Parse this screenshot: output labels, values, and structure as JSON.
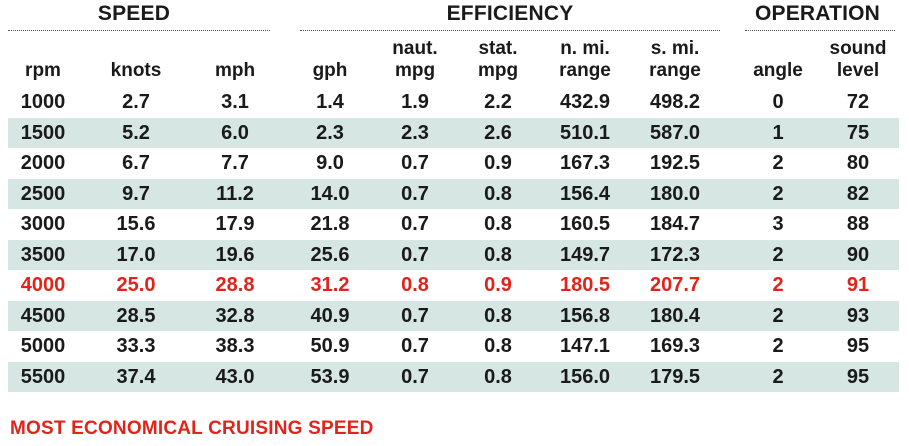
{
  "groups": {
    "speed": "SPEED",
    "efficiency": "EFFICIENCY",
    "operation": "OPERATION"
  },
  "columns": {
    "rpm": [
      "",
      "rpm"
    ],
    "knots": [
      "",
      "knots"
    ],
    "mph": [
      "",
      "mph"
    ],
    "gph": [
      "",
      "gph"
    ],
    "naut_mpg": [
      "naut.",
      "mpg"
    ],
    "stat_mpg": [
      "stat.",
      "mpg"
    ],
    "n_mi_range": [
      "n. mi.",
      "range"
    ],
    "s_mi_range": [
      "s. mi.",
      "range"
    ],
    "angle": [
      "",
      "angle"
    ],
    "sound_level": [
      "sound",
      "level"
    ]
  },
  "rows": [
    [
      "1000",
      "2.7",
      "3.1",
      "1.4",
      "1.9",
      "2.2",
      "432.9",
      "498.2",
      "0",
      "72"
    ],
    [
      "1500",
      "5.2",
      "6.0",
      "2.3",
      "2.3",
      "2.6",
      "510.1",
      "587.0",
      "1",
      "75"
    ],
    [
      "2000",
      "6.7",
      "7.7",
      "9.0",
      "0.7",
      "0.9",
      "167.3",
      "192.5",
      "2",
      "80"
    ],
    [
      "2500",
      "9.7",
      "11.2",
      "14.0",
      "0.7",
      "0.8",
      "156.4",
      "180.0",
      "2",
      "82"
    ],
    [
      "3000",
      "15.6",
      "17.9",
      "21.8",
      "0.7",
      "0.8",
      "160.5",
      "184.7",
      "3",
      "88"
    ],
    [
      "3500",
      "17.0",
      "19.6",
      "25.6",
      "0.7",
      "0.8",
      "149.7",
      "172.3",
      "2",
      "90"
    ],
    [
      "4000",
      "25.0",
      "28.8",
      "31.2",
      "0.8",
      "0.9",
      "180.5",
      "207.7",
      "2",
      "91"
    ],
    [
      "4500",
      "28.5",
      "32.8",
      "40.9",
      "0.7",
      "0.8",
      "156.8",
      "180.4",
      "2",
      "93"
    ],
    [
      "5000",
      "33.3",
      "38.3",
      "50.9",
      "0.7",
      "0.8",
      "147.1",
      "169.3",
      "2",
      "95"
    ],
    [
      "5500",
      "37.4",
      "43.0",
      "53.9",
      "0.7",
      "0.8",
      "156.0",
      "179.5",
      "2",
      "95"
    ]
  ],
  "highlight_row_index": 6,
  "footnote": "MOST ECONOMICAL CRUISING SPEED",
  "colors": {
    "shade": "#d6e6e2",
    "highlight": "#e2231a",
    "text": "#1a1a1a"
  }
}
